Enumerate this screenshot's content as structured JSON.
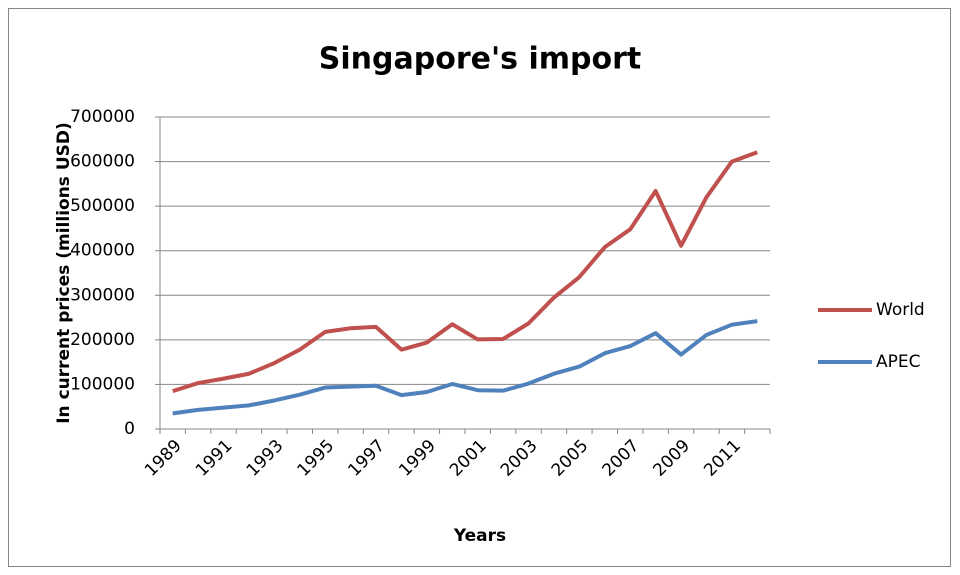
{
  "chart_data": {
    "type": "line",
    "title": "Singapore's import",
    "x_label": "Years",
    "y_label": "In current prices (millions USD)",
    "x": [
      1989,
      1990,
      1991,
      1992,
      1993,
      1994,
      1995,
      1996,
      1997,
      1998,
      1999,
      2000,
      2001,
      2002,
      2003,
      2004,
      2005,
      2006,
      2007,
      2008,
      2009,
      2010,
      2011,
      2012
    ],
    "xticks": [
      1989,
      1991,
      1993,
      1995,
      1997,
      1999,
      2001,
      2003,
      2005,
      2007,
      2009,
      2011
    ],
    "series": [
      {
        "name": "World",
        "color": "#c0504d",
        "values": [
          85000,
          103000,
          113000,
          124000,
          148000,
          178000,
          218000,
          226000,
          229000,
          178000,
          194000,
          235000,
          201000,
          202000,
          237000,
          295000,
          341000,
          408000,
          448000,
          534000,
          411000,
          520000,
          600000,
          621000
        ]
      },
      {
        "name": "APEC",
        "color": "#4f81bd",
        "values": [
          35000,
          43000,
          48000,
          53000,
          64000,
          77000,
          93000,
          95000,
          97000,
          76000,
          83000,
          101000,
          87000,
          86000,
          102000,
          124000,
          140000,
          170000,
          186000,
          215000,
          167000,
          211000,
          234000,
          242000
        ]
      }
    ],
    "ylim": [
      0,
      700000
    ],
    "yticks": [
      0,
      100000,
      200000,
      300000,
      400000,
      500000,
      600000,
      700000
    ],
    "grid": true,
    "legend": "right"
  }
}
